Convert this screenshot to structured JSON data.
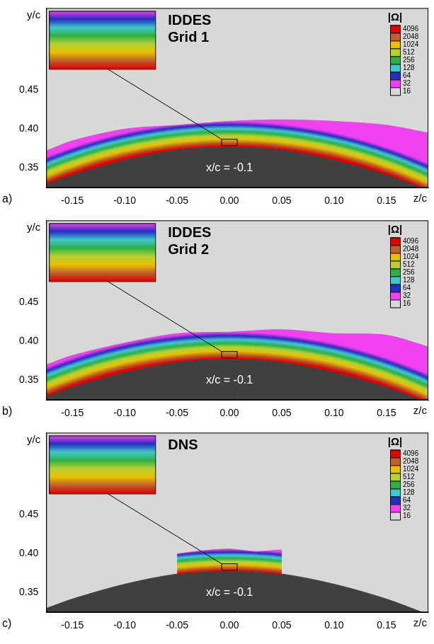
{
  "chart_data": [
    {
      "type": "line",
      "label": "a)",
      "title": [
        "IDDES",
        "Grid 1"
      ],
      "x_label": "z/c",
      "y_label": "y/c",
      "annotation": "x/c = -0.1",
      "xlim": [
        -0.175,
        0.19
      ],
      "xticks": [
        {
          "value": -0.15,
          "label": "-0.15"
        },
        {
          "value": -0.1,
          "label": "-0.10"
        },
        {
          "value": -0.05,
          "label": "-0.05"
        },
        {
          "value": 0,
          "label": "0.00"
        },
        0.05,
        {
          "value": 0.1,
          "label": "0.10"
        },
        0.15
      ],
      "ylim": [
        0.325,
        0.555
      ],
      "yticks": [
        0.35,
        {
          "value": 0.4,
          "label": "0.40"
        },
        0.45
      ],
      "surface": {
        "x": [
          -0.175,
          -0.15,
          -0.1,
          -0.05,
          0,
          0.05,
          0.1,
          0.15,
          0.19
        ],
        "y": [
          0.33,
          0.342,
          0.361,
          0.374,
          0.378,
          0.374,
          0.361,
          0.342,
          0.322
        ]
      },
      "layer": {
        "x": [
          -0.175,
          -0.15,
          -0.1,
          -0.05,
          0,
          0.05,
          0.1,
          0.15,
          0.19
        ],
        "y_wall": [
          0.33,
          0.342,
          0.361,
          0.374,
          0.378,
          0.374,
          0.361,
          0.342,
          0.322
        ],
        "y_top": [
          0.372,
          0.385,
          0.4,
          0.405,
          0.41,
          0.412,
          0.41,
          0.405,
          0.395
        ]
      },
      "colorbar": {
        "title": "|Ω|",
        "ticks": [
          4096,
          2048,
          1024,
          512,
          256,
          128,
          64,
          32,
          16
        ],
        "colors": [
          "#e00000",
          "#c06030",
          "#e8c000",
          "#b8d030",
          "#30b040",
          "#40c8c8",
          "#2030c0",
          "#f040f0",
          "#d8d8d8"
        ]
      }
    },
    {
      "type": "line",
      "label": "b)",
      "title": [
        "IDDES",
        "Grid 2"
      ],
      "x_label": "z/c",
      "y_label": "y/c",
      "annotation": "x/c = -0.1",
      "xlim": [
        -0.175,
        0.19
      ],
      "xticks": [
        {
          "value": -0.15,
          "label": "-0.15"
        },
        {
          "value": -0.1,
          "label": "-0.10"
        },
        {
          "value": -0.05,
          "label": "-0.05"
        },
        {
          "value": 0,
          "label": "0.00"
        },
        0.05,
        {
          "value": 0.1,
          "label": "0.10"
        },
        0.15
      ],
      "ylim": [
        0.325,
        0.555
      ],
      "yticks": [
        0.35,
        {
          "value": 0.4,
          "label": "0.40"
        },
        0.45
      ],
      "surface": {
        "x": [
          -0.175,
          -0.15,
          -0.1,
          -0.05,
          0,
          0.05,
          0.1,
          0.15,
          0.19
        ],
        "y": [
          0.33,
          0.342,
          0.361,
          0.374,
          0.378,
          0.374,
          0.361,
          0.342,
          0.322
        ]
      },
      "layer": {
        "x": [
          -0.175,
          -0.15,
          -0.1,
          -0.05,
          0,
          0.05,
          0.1,
          0.15,
          0.19
        ],
        "y_wall": [
          0.33,
          0.342,
          0.361,
          0.374,
          0.378,
          0.374,
          0.361,
          0.342,
          0.322
        ],
        "y_top": [
          0.37,
          0.382,
          0.398,
          0.41,
          0.412,
          0.415,
          0.41,
          0.408,
          0.393
        ]
      },
      "colorbar": {
        "title": "|Ω|",
        "ticks": [
          4096,
          2048,
          1024,
          512,
          256,
          128,
          64,
          32,
          16
        ],
        "colors": [
          "#e00000",
          "#c06030",
          "#e8c000",
          "#b8d030",
          "#30b040",
          "#40c8c8",
          "#2030c0",
          "#f040f0",
          "#d8d8d8"
        ]
      }
    },
    {
      "type": "line",
      "label": "c)",
      "title": [
        "DNS"
      ],
      "x_label": "z/c",
      "y_label": "y/c",
      "annotation": "x/c = -0.1",
      "xlim": [
        -0.175,
        0.19
      ],
      "xticks": [
        {
          "value": -0.15,
          "label": "-0.15"
        },
        {
          "value": -0.1,
          "label": "-0.10"
        },
        {
          "value": -0.05,
          "label": "-0.05"
        },
        {
          "value": 0,
          "label": "0.00"
        },
        0.05,
        {
          "value": 0.1,
          "label": "0.10"
        },
        0.15
      ],
      "ylim": [
        0.325,
        0.555
      ],
      "yticks": [
        0.35,
        {
          "value": 0.4,
          "label": "0.40"
        },
        0.45
      ],
      "surface": {
        "x": [
          -0.175,
          -0.15,
          -0.1,
          -0.05,
          0,
          0.05,
          0.1,
          0.15,
          0.19
        ],
        "y": [
          0.33,
          0.342,
          0.361,
          0.374,
          0.378,
          0.374,
          0.361,
          0.342,
          0.322
        ]
      },
      "layer": {
        "x": [
          -0.05,
          -0.025,
          0,
          0.025,
          0.05
        ],
        "y_wall": [
          0.374,
          0.377,
          0.378,
          0.377,
          0.374
        ],
        "y_top": [
          0.4,
          0.404,
          0.406,
          0.403,
          0.405
        ]
      },
      "colorbar": {
        "title": "|Ω|",
        "ticks": [
          4096,
          2048,
          1024,
          512,
          256,
          128,
          64,
          32,
          16
        ],
        "colors": [
          "#e00000",
          "#c06030",
          "#e8c000",
          "#b8d030",
          "#30b040",
          "#40c8c8",
          "#2030c0",
          "#f040f0",
          "#d8d8d8"
        ]
      }
    }
  ]
}
